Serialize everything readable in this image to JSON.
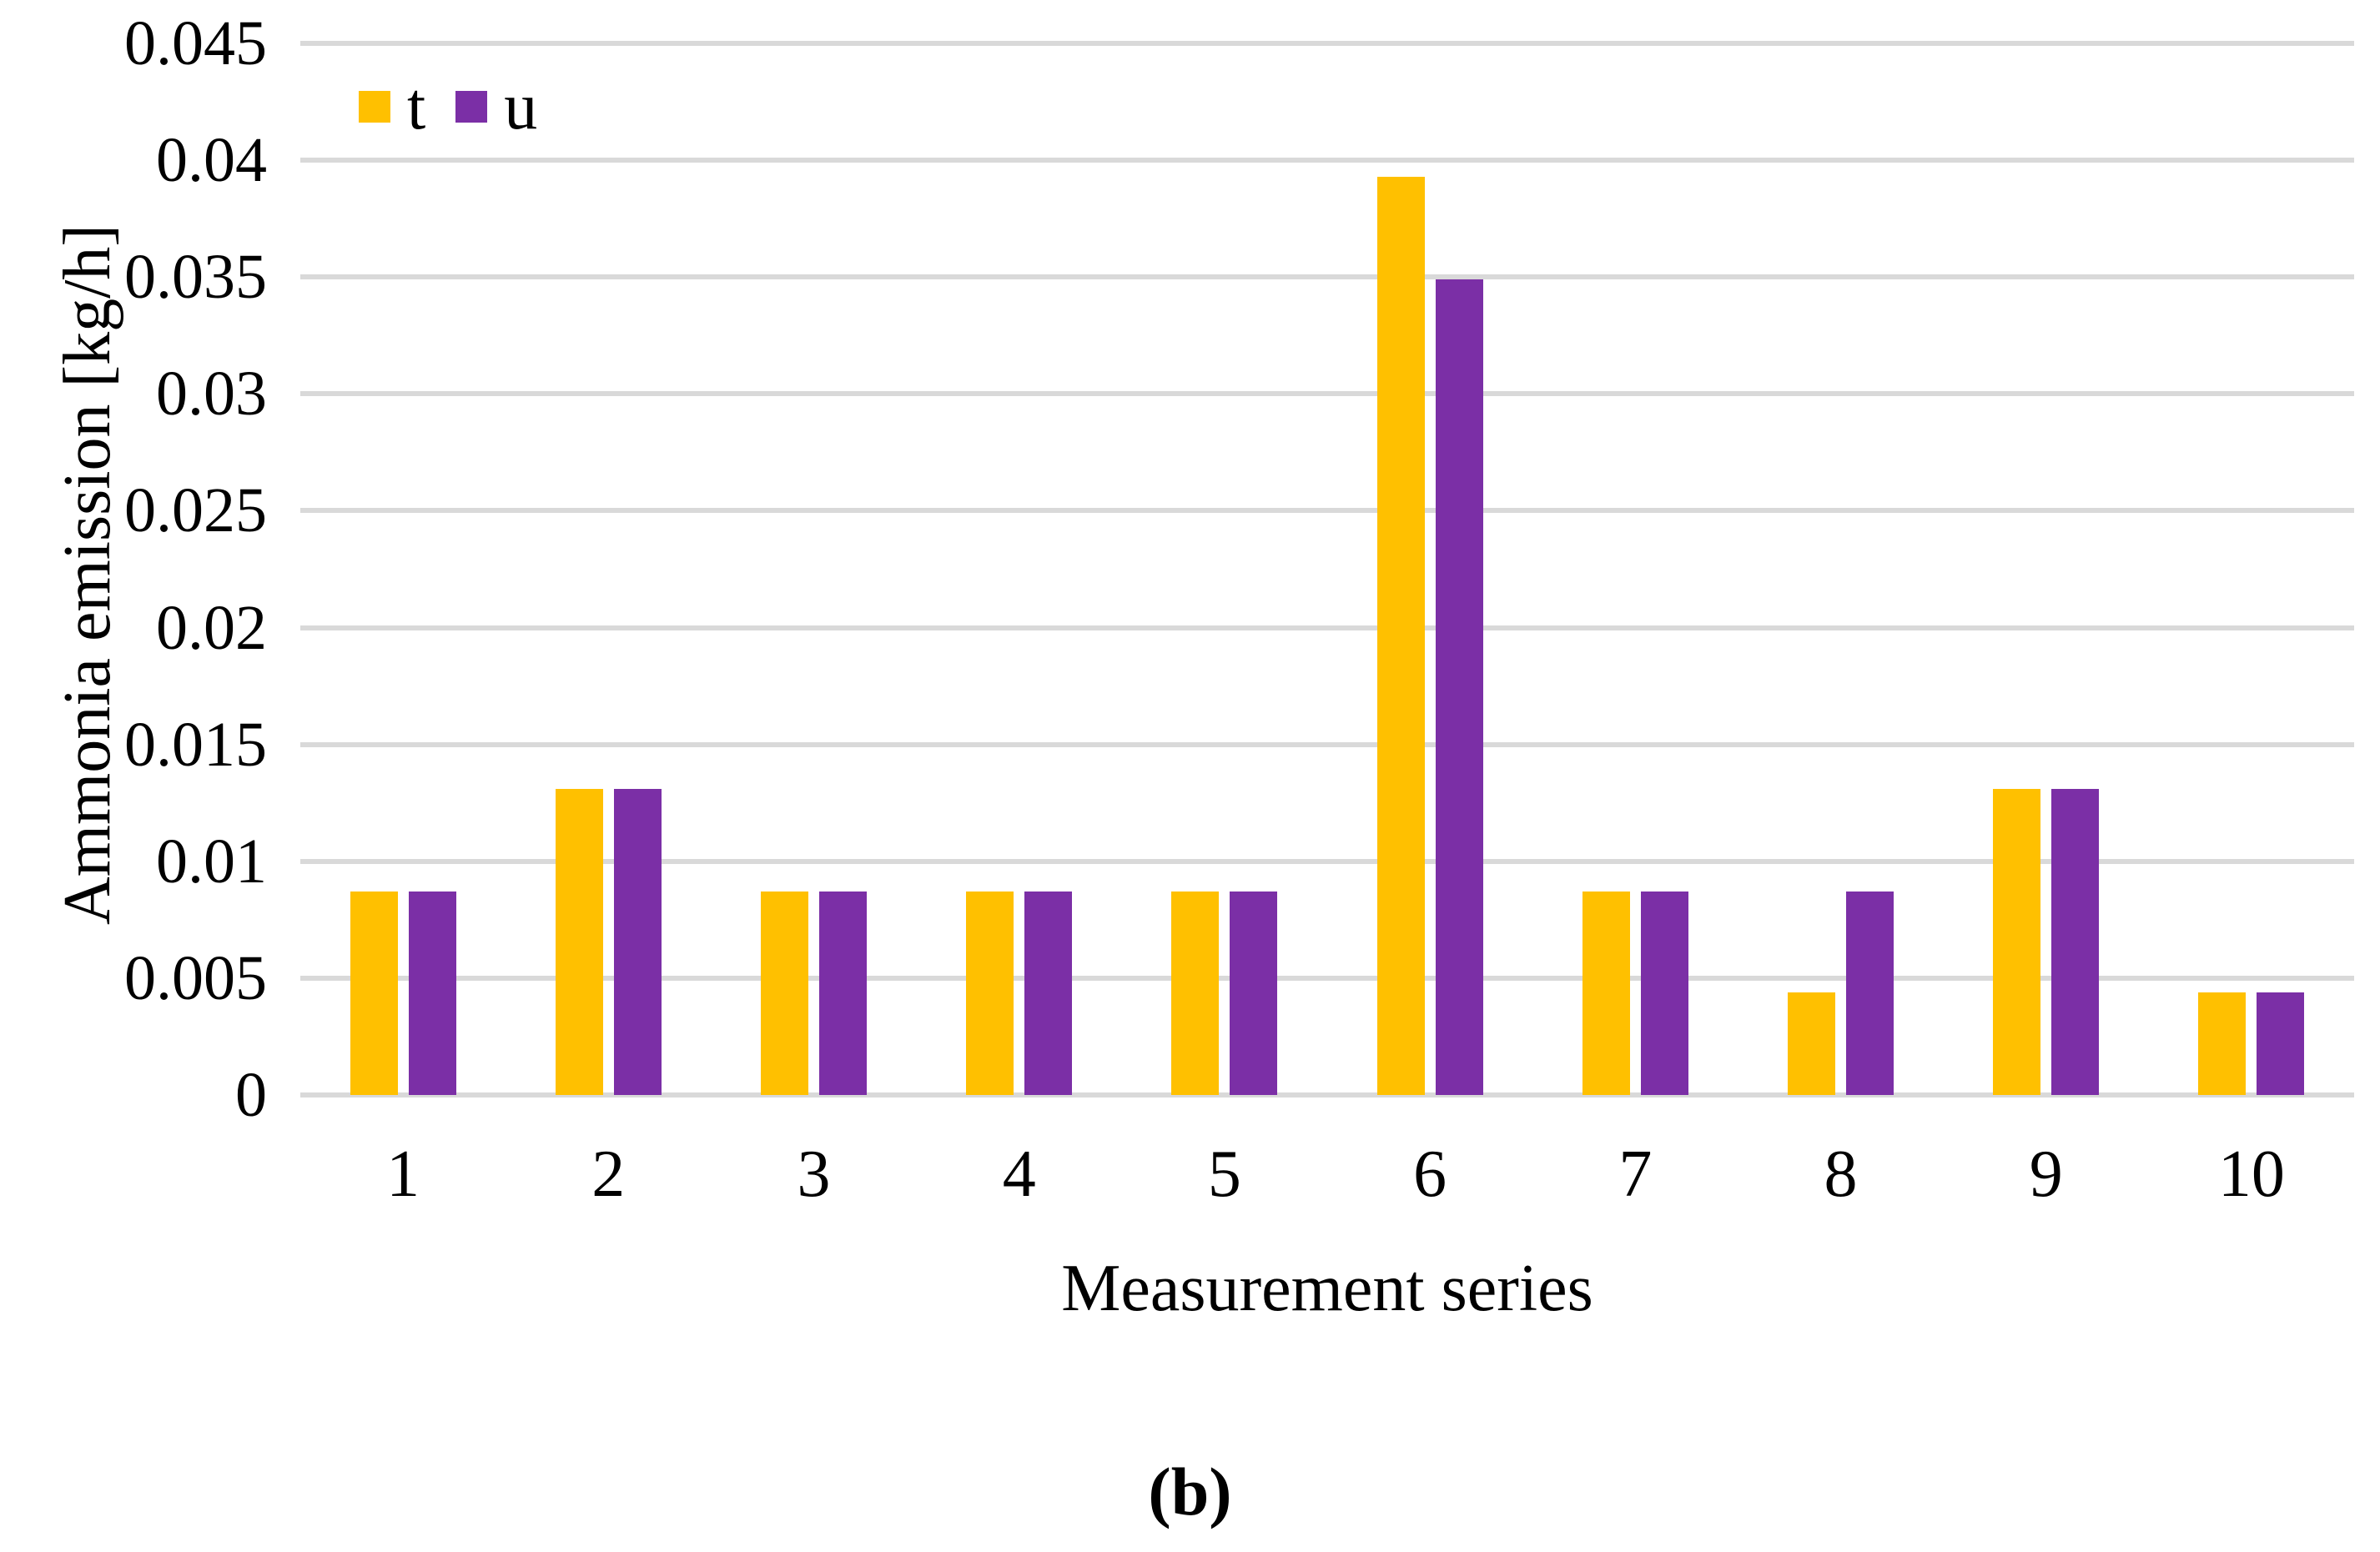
{
  "figure": {
    "caption": "(b)"
  },
  "chart_data": {
    "type": "bar",
    "title": "",
    "xlabel": "Measurement series",
    "ylabel": "Ammonia emission [kg/h]",
    "categories": [
      "1",
      "2",
      "3",
      "4",
      "5",
      "6",
      "7",
      "8",
      "9",
      "10"
    ],
    "series": [
      {
        "name": "t",
        "color": "#FFC000",
        "values": [
          0.0087,
          0.0131,
          0.0087,
          0.0087,
          0.0087,
          0.0393,
          0.0087,
          0.0044,
          0.0131,
          0.0044
        ]
      },
      {
        "name": "u",
        "color": "#7B2FA6",
        "values": [
          0.0087,
          0.0131,
          0.0087,
          0.0087,
          0.0087,
          0.0349,
          0.0087,
          0.0087,
          0.0131,
          0.0044
        ]
      }
    ],
    "ylim": [
      0,
      0.045
    ],
    "ytick_step": 0.005,
    "ytick_labels": [
      "0",
      "0.005",
      "0.01",
      "0.015",
      "0.02",
      "0.025",
      "0.03",
      "0.035",
      "0.04",
      "0.045"
    ],
    "grid": "horizontal-gridlines-on",
    "gridline_color": "#D9D9D9",
    "legend_position": "inside-top-left",
    "legend_entries": [
      "t",
      "u"
    ]
  }
}
